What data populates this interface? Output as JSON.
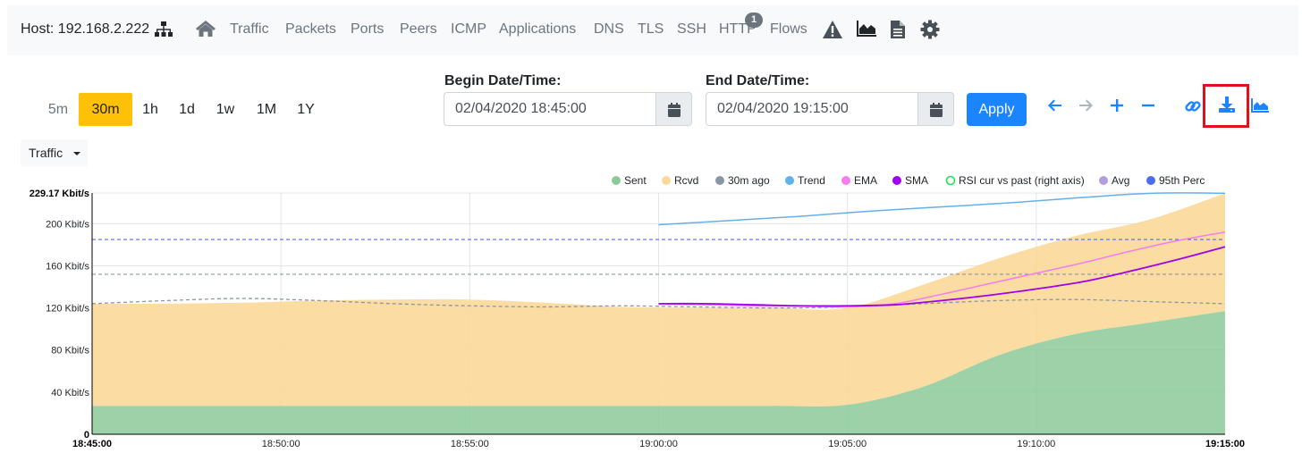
{
  "navbar": {
    "host_label": "Host: 192.168.2.222",
    "links": [
      "Traffic",
      "Packets",
      "Ports",
      "Peers",
      "ICMP",
      "Applications",
      "DNS",
      "TLS",
      "SSH",
      "HTTP",
      "Flows"
    ],
    "http_badge": "1",
    "icons": [
      "sitemap-icon",
      "home-icon",
      "alert-icon",
      "area-chart-icon",
      "file-icon",
      "gear-icon"
    ]
  },
  "timeframes": [
    "5m",
    "30m",
    "1h",
    "1d",
    "1w",
    "1M",
    "1Y"
  ],
  "active_timeframe": "30m",
  "range": {
    "begin_label": "Begin Date/Time:",
    "begin_value": "02/04/2020 18:45:00",
    "end_label": "End Date/Time:",
    "end_value": "02/04/2020 19:15:00",
    "apply_label": "Apply"
  },
  "toolbar_icons": [
    "arrow-left-icon",
    "arrow-right-icon",
    "zoom-in-icon",
    "zoom-out-icon",
    "link-icon",
    "download-icon",
    "area-chart-icon"
  ],
  "metric_dropdown": "Traffic",
  "colors": {
    "sent": "#8cca9a",
    "rcvd": "#fbd898",
    "ago30": "#8a96a8",
    "trend": "#64b0ea",
    "ema": "#f57cf1",
    "sma": "#a100ea",
    "rsi": "#21e05a",
    "avg": "#b19de0",
    "perc95": "#4b6ded",
    "accent": "#1b84ff",
    "highlight": "#e3101b"
  },
  "chart_data": {
    "type": "area",
    "x_ticks": [
      "18:45:00",
      "18:50:00",
      "18:55:00",
      "19:00:00",
      "19:05:00",
      "19:10:00",
      "19:15:00"
    ],
    "x_minutes": [
      0,
      2,
      4,
      6,
      8,
      10,
      12,
      14,
      16,
      18,
      20,
      22,
      24,
      26,
      28,
      30
    ],
    "y_ticks": [
      "0",
      "40 Kbit/s",
      "80 Kbit/s",
      "120 Kbit/s",
      "160 Kbit/s",
      "200 Kbit/s",
      "229.17 Kbit/s"
    ],
    "y_tick_values": [
      0,
      40,
      80,
      120,
      160,
      200,
      229.17
    ],
    "ylim": [
      0,
      229.17
    ],
    "legend": [
      "Sent",
      "Rcvd",
      "30m ago",
      "Trend",
      "EMA",
      "SMA",
      "RSI cur vs past (right axis)",
      "Avg",
      "95th Perc"
    ],
    "series": [
      {
        "name": "Sent",
        "type": "area",
        "values": [
          27,
          27,
          27,
          27,
          27,
          27,
          27,
          27,
          27,
          27,
          28,
          45,
          75,
          95,
          106,
          117
        ]
      },
      {
        "name": "Rcvd",
        "type": "area",
        "values": [
          97,
          97,
          98,
          100,
          101,
          101,
          98,
          94,
          93,
          93,
          92,
          97,
          92,
          93,
          98,
          112
        ]
      },
      {
        "name": "30m ago",
        "type": "dashed",
        "values": [
          124,
          127,
          129,
          127,
          124,
          122,
          121,
          122,
          121,
          120,
          121,
          124,
          127,
          128,
          126,
          124
        ]
      },
      {
        "name": "Trend",
        "type": "line",
        "x_start": 15,
        "values": [
          199,
          203,
          207,
          212,
          216,
          220,
          225,
          229,
          229
        ]
      },
      {
        "name": "EMA",
        "type": "line",
        "x_start": 15,
        "values": [
          124,
          123,
          122,
          122,
          121,
          124,
          133,
          143,
          153,
          163,
          174,
          184,
          192
        ]
      },
      {
        "name": "SMA",
        "type": "line",
        "x_start": 15,
        "values": [
          124,
          124,
          123,
          122,
          122,
          123,
          127,
          132,
          138,
          145,
          155,
          166,
          178
        ]
      },
      {
        "name": "Avg",
        "type": "reference",
        "value": 152
      },
      {
        "name": "95th Perc",
        "type": "reference",
        "value": 185
      }
    ],
    "grid": true,
    "legend_position": "top-right"
  }
}
